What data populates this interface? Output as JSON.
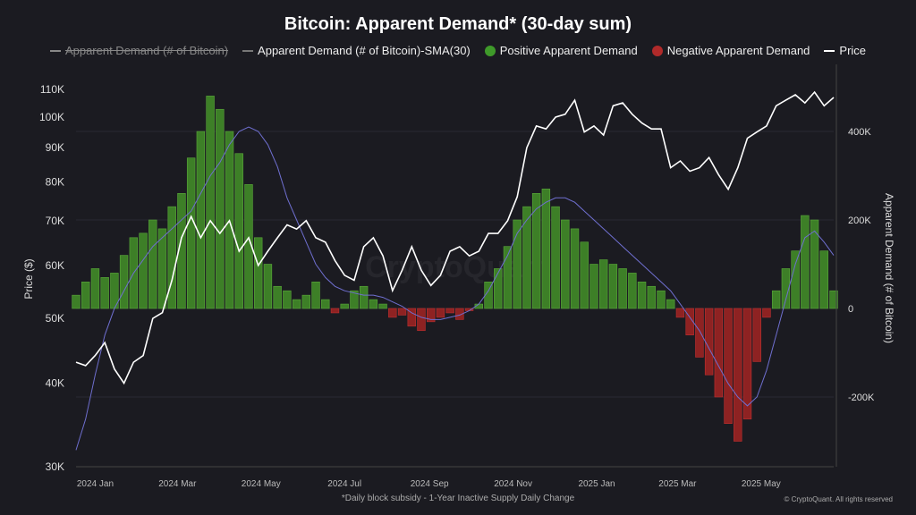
{
  "chart_data": {
    "type": "bar+line",
    "title": "Bitcoin: Apparent Demand* (30-day sum)",
    "legend": [
      {
        "label": "Apparent Demand (# of Bitcoin)",
        "hidden": true,
        "color": "#aaaaaa"
      },
      {
        "label": "Apparent Demand (# of Bitcoin)-SMA(30)",
        "color": "#6f6fd0"
      },
      {
        "label": "Positive Apparent Demand",
        "color": "#3f8f2a"
      },
      {
        "label": "Negative Apparent Demand",
        "color": "#b02a2a"
      },
      {
        "label": "Price",
        "color": "#ffffff"
      }
    ],
    "legend_position": "top",
    "ylabel_left": "Price ($)",
    "ylabel_right": "Apparent Demand (# of Bitcoin)",
    "left_scale": "log",
    "ylim_left": [
      30000,
      115000
    ],
    "ylim_right": [
      -360000,
      500000
    ],
    "left_ticks": [
      "30K",
      "40K",
      "50K",
      "60K",
      "70K",
      "80K",
      "90K",
      "100K",
      "110K"
    ],
    "left_tick_values": [
      30000,
      40000,
      50000,
      60000,
      70000,
      80000,
      90000,
      100000,
      110000
    ],
    "right_ticks": [
      "400K",
      "200K",
      "0",
      "-200K"
    ],
    "right_tick_values": [
      400000,
      200000,
      0,
      -200000
    ],
    "x_ticks": [
      "2024 Jan",
      "2024 Mar",
      "2024 May",
      "2024 Jul",
      "2024 Sep",
      "2024 Nov",
      "2025 Jan",
      "2025 Mar",
      "2025 May"
    ],
    "x_tick_dates": [
      "2024-01-01",
      "2024-03-01",
      "2024-05-01",
      "2024-07-01",
      "2024-09-01",
      "2024-11-01",
      "2025-01-01",
      "2025-03-01",
      "2025-05-01"
    ],
    "x": [
      "2023-12-18",
      "2023-12-25",
      "2024-01-01",
      "2024-01-08",
      "2024-01-15",
      "2024-01-22",
      "2024-01-29",
      "2024-02-05",
      "2024-02-12",
      "2024-02-19",
      "2024-02-26",
      "2024-03-04",
      "2024-03-11",
      "2024-03-18",
      "2024-03-25",
      "2024-04-01",
      "2024-04-08",
      "2024-04-15",
      "2024-04-22",
      "2024-04-29",
      "2024-05-06",
      "2024-05-13",
      "2024-05-20",
      "2024-05-27",
      "2024-06-03",
      "2024-06-10",
      "2024-06-17",
      "2024-06-24",
      "2024-07-01",
      "2024-07-08",
      "2024-07-15",
      "2024-07-22",
      "2024-07-29",
      "2024-08-05",
      "2024-08-12",
      "2024-08-19",
      "2024-08-26",
      "2024-09-02",
      "2024-09-09",
      "2024-09-16",
      "2024-09-23",
      "2024-09-30",
      "2024-10-07",
      "2024-10-14",
      "2024-10-21",
      "2024-10-28",
      "2024-11-04",
      "2024-11-11",
      "2024-11-18",
      "2024-11-25",
      "2024-12-02",
      "2024-12-09",
      "2024-12-16",
      "2024-12-23",
      "2024-12-30",
      "2025-01-06",
      "2025-01-13",
      "2025-01-20",
      "2025-01-27",
      "2025-02-03",
      "2025-02-10",
      "2025-02-17",
      "2025-02-24",
      "2025-03-03",
      "2025-03-10",
      "2025-03-17",
      "2025-03-24",
      "2025-03-31",
      "2025-04-07",
      "2025-04-14",
      "2025-04-21",
      "2025-04-28",
      "2025-05-05",
      "2025-05-12",
      "2025-05-19",
      "2025-05-26",
      "2025-06-02",
      "2025-06-09",
      "2025-06-16",
      "2025-06-23"
    ],
    "price": [
      43000,
      42500,
      44000,
      46000,
      42000,
      40000,
      43000,
      44000,
      50000,
      51000,
      57000,
      66000,
      71000,
      66000,
      70000,
      67000,
      70000,
      63000,
      66000,
      60000,
      63000,
      66000,
      69000,
      68000,
      70000,
      66000,
      65000,
      61000,
      58000,
      57000,
      64000,
      66000,
      62000,
      55000,
      59000,
      64000,
      59000,
      56000,
      58000,
      63000,
      64000,
      62000,
      63000,
      67000,
      67000,
      70000,
      76000,
      90000,
      97000,
      96000,
      100000,
      101000,
      106000,
      95000,
      97000,
      94000,
      104000,
      105000,
      101000,
      98000,
      96000,
      96000,
      84000,
      86000,
      83000,
      84000,
      87000,
      82000,
      78000,
      84000,
      93000,
      95000,
      97000,
      104000,
      106000,
      108000,
      105000,
      109000,
      104000,
      107000
    ],
    "demand": [
      30000,
      60000,
      90000,
      70000,
      80000,
      120000,
      160000,
      170000,
      200000,
      180000,
      230000,
      260000,
      340000,
      400000,
      480000,
      450000,
      400000,
      350000,
      280000,
      160000,
      100000,
      50000,
      40000,
      20000,
      30000,
      60000,
      20000,
      -10000,
      10000,
      40000,
      50000,
      20000,
      10000,
      -20000,
      -15000,
      -40000,
      -50000,
      -30000,
      -20000,
      -10000,
      -25000,
      -5000,
      10000,
      60000,
      90000,
      140000,
      200000,
      230000,
      260000,
      270000,
      230000,
      200000,
      180000,
      150000,
      100000,
      110000,
      100000,
      90000,
      80000,
      60000,
      50000,
      40000,
      20000,
      -20000,
      -60000,
      -110000,
      -150000,
      -200000,
      -260000,
      -300000,
      -250000,
      -120000,
      -20000,
      40000,
      90000,
      130000,
      210000,
      200000,
      130000,
      40000
    ],
    "demand_sma30": [
      -320000,
      -250000,
      -150000,
      -60000,
      0,
      40000,
      80000,
      110000,
      140000,
      160000,
      180000,
      200000,
      220000,
      260000,
      300000,
      330000,
      370000,
      400000,
      410000,
      400000,
      370000,
      320000,
      250000,
      200000,
      150000,
      100000,
      70000,
      50000,
      40000,
      35000,
      30000,
      30000,
      25000,
      15000,
      5000,
      -10000,
      -20000,
      -25000,
      -25000,
      -20000,
      -15000,
      -5000,
      10000,
      40000,
      80000,
      120000,
      170000,
      200000,
      225000,
      240000,
      250000,
      250000,
      240000,
      220000,
      200000,
      180000,
      160000,
      140000,
      120000,
      100000,
      80000,
      60000,
      40000,
      10000,
      -20000,
      -50000,
      -90000,
      -130000,
      -170000,
      -200000,
      -220000,
      -200000,
      -140000,
      -60000,
      20000,
      100000,
      160000,
      175000,
      150000,
      120000
    ],
    "footnote": "*Daily block subsidy - 1-Year Inactive Supply Daily Change",
    "copyright": "© CryptoQuant. All rights reserved",
    "watermark": "CryptoQuant"
  }
}
